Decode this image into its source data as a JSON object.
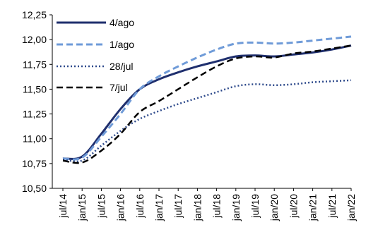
{
  "chart_data": {
    "type": "line",
    "title": "",
    "xlabel": "",
    "ylabel": "",
    "ylim": [
      10.5,
      12.25
    ],
    "yticks": [
      "12,25",
      "12,00",
      "11,75",
      "11,50",
      "11,25",
      "11,00",
      "10,75",
      "10,50"
    ],
    "x_categories": [
      "jul/14",
      "jan/15",
      "jul/15",
      "jan/16",
      "jul/16",
      "jan/17",
      "jul/17",
      "jan/18",
      "jul/18",
      "jan/19",
      "jul/19",
      "jan/20",
      "jul/20",
      "jan/21",
      "jul/21",
      "jan/22"
    ],
    "legend_position": "top-left, inside",
    "grid": false,
    "series": [
      {
        "name": "4/ago",
        "color": "#1f2f6e",
        "style": "solid",
        "points": [
          [
            "jul/14",
            10.8
          ],
          [
            "jan/15",
            10.82
          ],
          [
            "jul/15",
            11.05
          ],
          [
            "jan/16",
            11.3
          ],
          [
            "jul/16",
            11.5
          ],
          [
            "jan/17",
            11.6
          ],
          [
            "jul/17",
            11.67
          ],
          [
            "jan/18",
            11.73
          ],
          [
            "jul/18",
            11.78
          ],
          [
            "jan/19",
            11.83
          ],
          [
            "jul/19",
            11.84
          ],
          [
            "jan/20",
            11.83
          ],
          [
            "jul/20",
            11.85
          ],
          [
            "jan/21",
            11.87
          ],
          [
            "jul/21",
            11.9
          ],
          [
            "jan/22",
            11.94
          ]
        ]
      },
      {
        "name": "1/ago",
        "color": "#6f9bd8",
        "style": "dashed",
        "points": [
          [
            "jul/14",
            10.8
          ],
          [
            "jan/15",
            10.81
          ],
          [
            "jul/15",
            11.02
          ],
          [
            "jan/16",
            11.25
          ],
          [
            "jul/16",
            11.5
          ],
          [
            "jan/17",
            11.63
          ],
          [
            "jul/17",
            11.73
          ],
          [
            "jan/18",
            11.82
          ],
          [
            "jul/18",
            11.9
          ],
          [
            "jan/19",
            11.96
          ],
          [
            "jul/19",
            11.97
          ],
          [
            "jan/20",
            11.96
          ],
          [
            "jul/20",
            11.97
          ],
          [
            "jan/21",
            11.99
          ],
          [
            "jul/21",
            12.01
          ],
          [
            "jan/22",
            12.03
          ]
        ]
      },
      {
        "name": "28/jul",
        "color": "#2f4b8c",
        "style": "dotted",
        "points": [
          [
            "jul/14",
            10.79
          ],
          [
            "jan/15",
            10.78
          ],
          [
            "jul/15",
            10.93
          ],
          [
            "jan/16",
            11.08
          ],
          [
            "jul/16",
            11.2
          ],
          [
            "jan/17",
            11.28
          ],
          [
            "jul/17",
            11.35
          ],
          [
            "jan/18",
            11.41
          ],
          [
            "jul/18",
            11.47
          ],
          [
            "jan/19",
            11.53
          ],
          [
            "jul/19",
            11.55
          ],
          [
            "jan/20",
            11.54
          ],
          [
            "jul/20",
            11.55
          ],
          [
            "jan/21",
            11.57
          ],
          [
            "jul/21",
            11.58
          ],
          [
            "jan/22",
            11.59
          ]
        ]
      },
      {
        "name": "7/jul",
        "color": "#000000",
        "style": "dashed",
        "points": [
          [
            "jul/14",
            10.78
          ],
          [
            "jan/15",
            10.76
          ],
          [
            "jul/15",
            10.88
          ],
          [
            "jan/16",
            11.05
          ],
          [
            "jul/16",
            11.27
          ],
          [
            "jan/17",
            11.38
          ],
          [
            "jul/17",
            11.5
          ],
          [
            "jan/18",
            11.62
          ],
          [
            "jul/18",
            11.73
          ],
          [
            "jan/19",
            11.81
          ],
          [
            "jul/19",
            11.83
          ],
          [
            "jan/20",
            11.82
          ],
          [
            "jul/20",
            11.86
          ],
          [
            "jan/21",
            11.88
          ],
          [
            "jul/21",
            11.91
          ],
          [
            "jan/22",
            11.94
          ]
        ]
      }
    ]
  }
}
